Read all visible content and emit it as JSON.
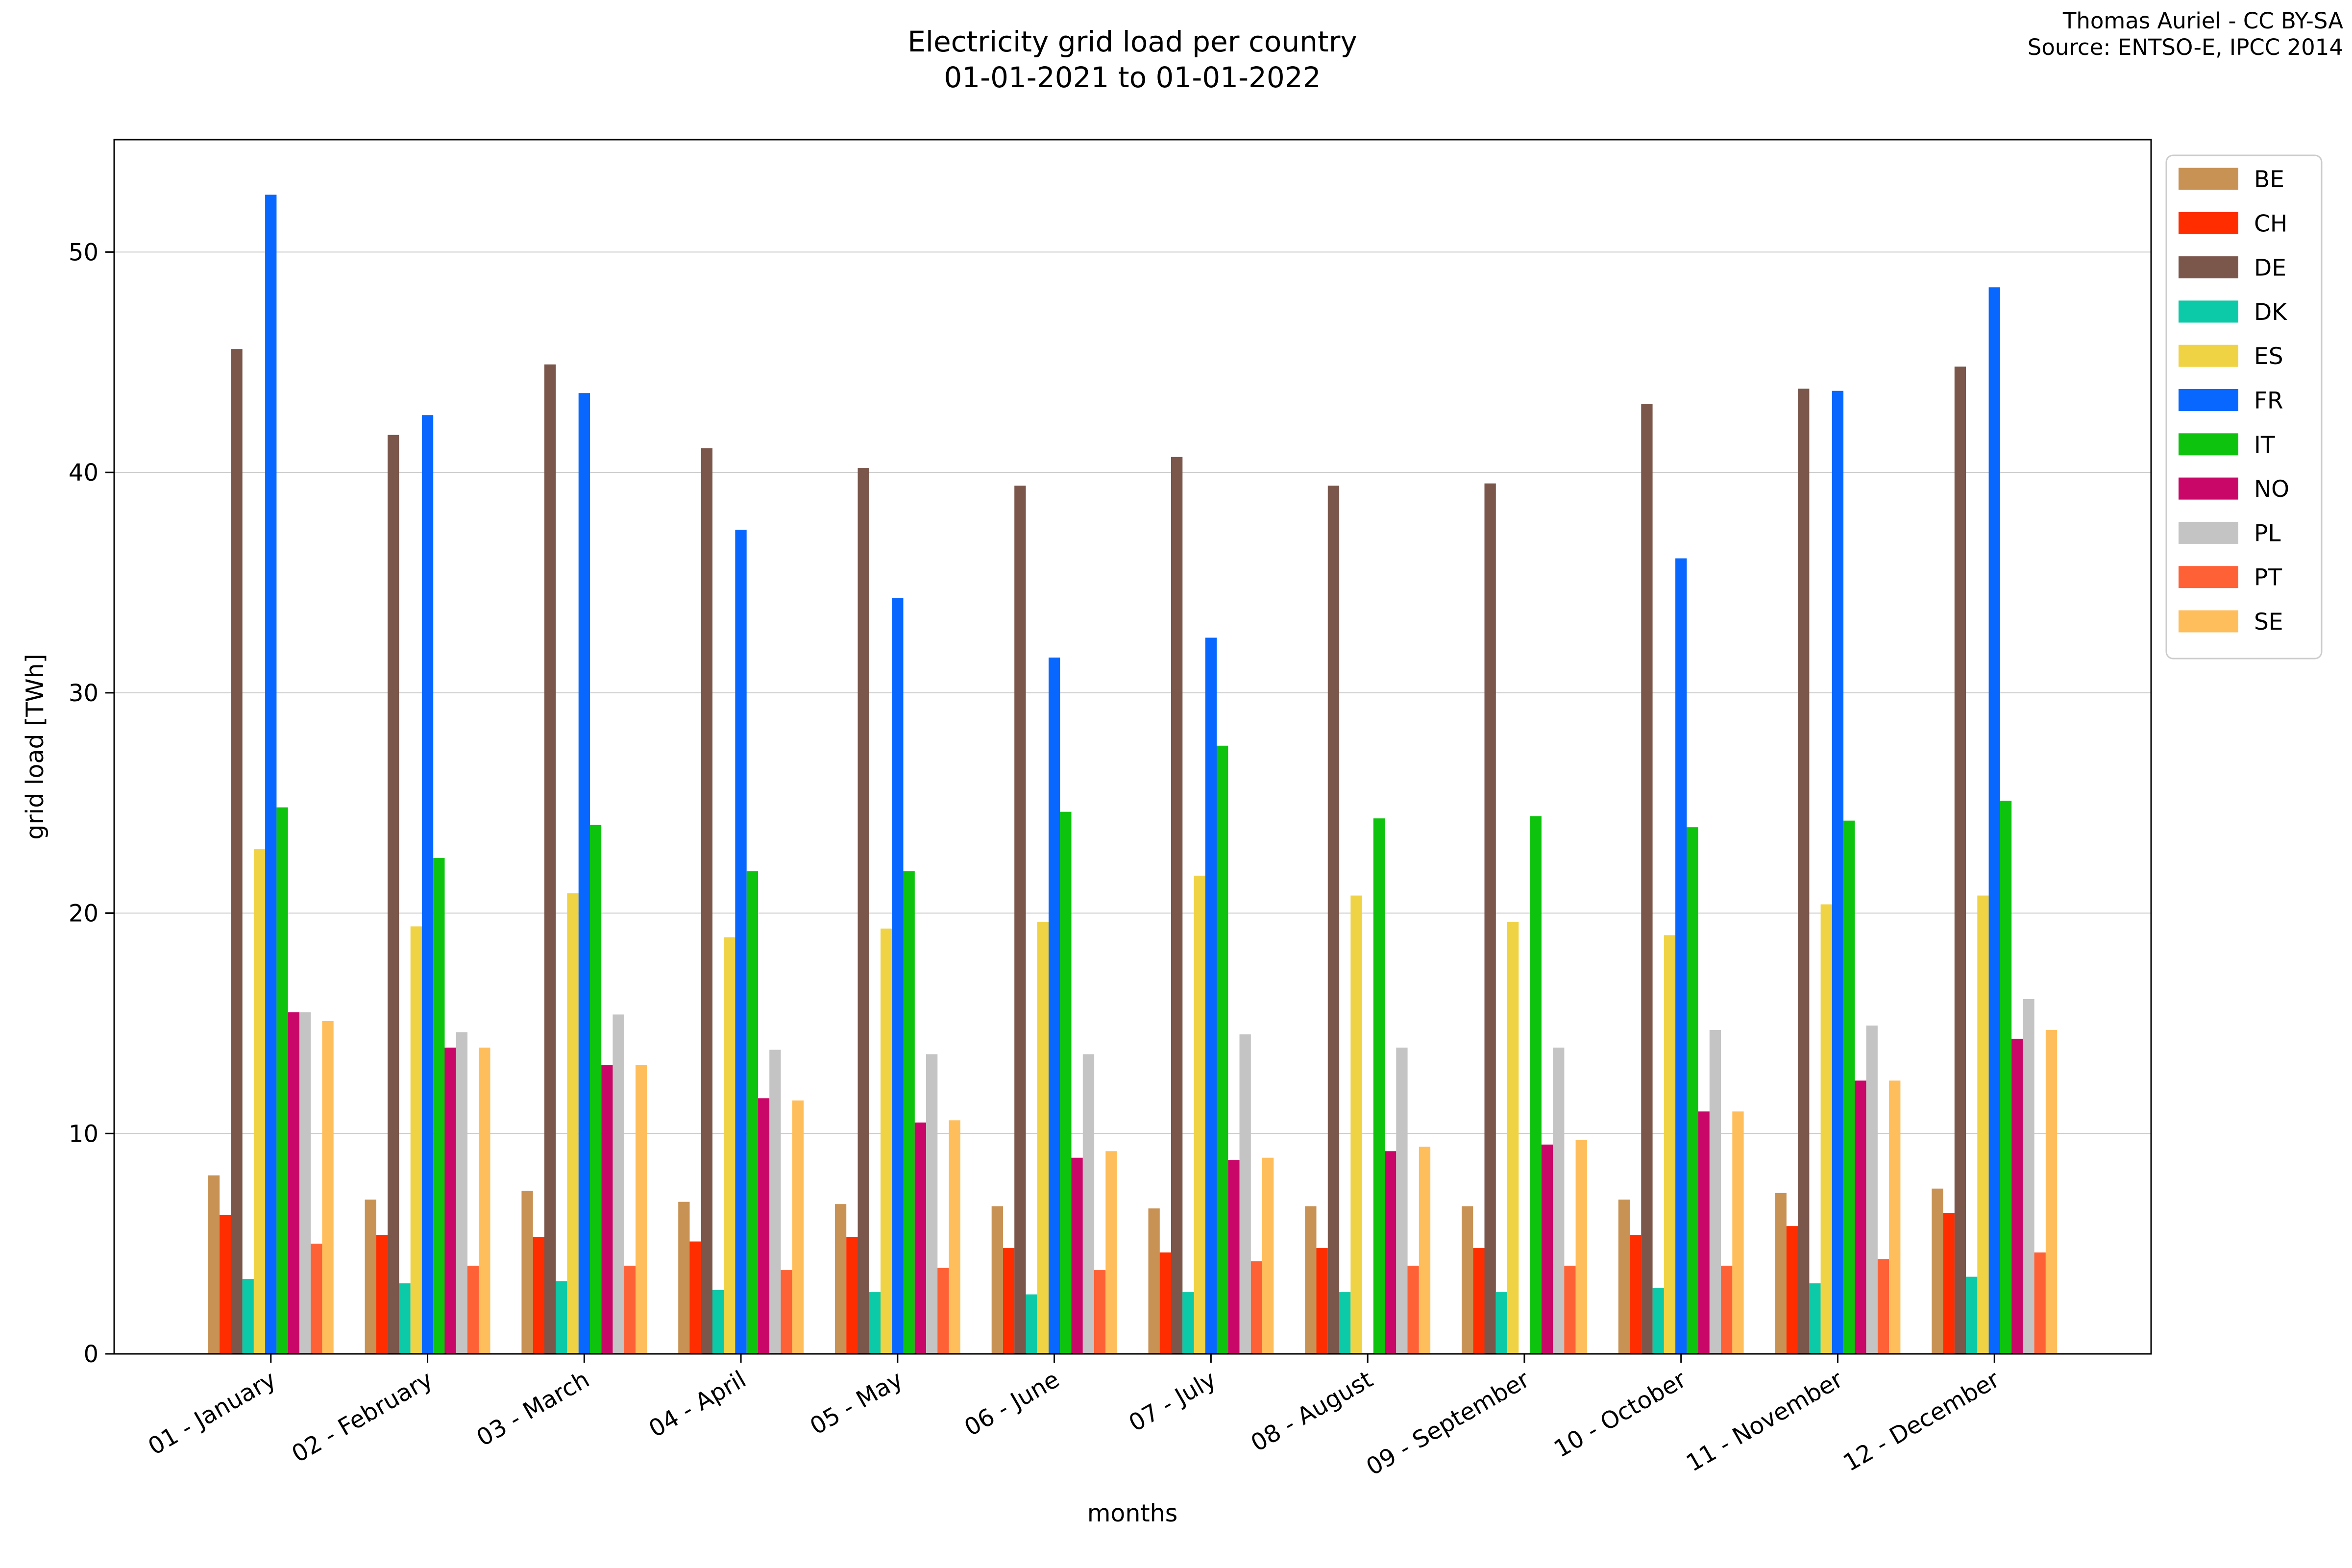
{
  "header": {
    "title_line1": "Electricity grid load per country",
    "title_line2": "01-01-2021 to 01-01-2022",
    "credit_line1": "Thomas Auriel - CC BY-SA",
    "credit_line2": "Source: ENTSO-E, IPCC 2014"
  },
  "chart_data": {
    "type": "bar",
    "title": "Electricity grid load per country 01-01-2021 to 01-01-2022",
    "xlabel": "months",
    "ylabel": "grid load [TWh]",
    "ylim": [
      0,
      55.1
    ],
    "yticks": [
      0,
      10,
      20,
      30,
      40,
      50
    ],
    "grid": "horizontal-gridlines-at-10-20-30-40-50",
    "gridline_color": "#cccccc",
    "frame_color": "#000000",
    "legend_position": "right",
    "x_tick_rotation_deg": 30,
    "categories": [
      "01 - January",
      "02 - February",
      "03 - March",
      "04 - April",
      "05 - May",
      "06 - June",
      "07 - July",
      "08 - August",
      "09 - September",
      "10 - October",
      "11 - November",
      "12 - December"
    ],
    "series": [
      {
        "name": "BE",
        "color": "#C89254",
        "values": [
          8.1,
          7.0,
          7.4,
          6.9,
          6.8,
          6.7,
          6.6,
          6.7,
          6.7,
          7.0,
          7.3,
          7.5
        ]
      },
      {
        "name": "CH",
        "color": "#FF2D00",
        "values": [
          6.3,
          5.4,
          5.3,
          5.1,
          5.3,
          4.8,
          4.6,
          4.8,
          4.8,
          5.4,
          5.8,
          6.4
        ]
      },
      {
        "name": "DE",
        "color": "#7A564B",
        "values": [
          45.6,
          41.7,
          44.9,
          41.1,
          40.2,
          39.4,
          40.7,
          39.4,
          39.5,
          43.1,
          43.8,
          44.8
        ]
      },
      {
        "name": "DK",
        "color": "#0CC9A7",
        "values": [
          3.4,
          3.2,
          3.3,
          2.9,
          2.8,
          2.7,
          2.8,
          2.8,
          2.8,
          3.0,
          3.2,
          3.5
        ]
      },
      {
        "name": "ES",
        "color": "#F0D345",
        "values": [
          22.9,
          19.4,
          20.9,
          18.9,
          19.3,
          19.6,
          21.7,
          20.8,
          19.6,
          19.0,
          20.4,
          20.8
        ]
      },
      {
        "name": "FR",
        "color": "#0767FF",
        "values": [
          52.6,
          42.6,
          43.6,
          37.4,
          34.3,
          31.6,
          32.5,
          0,
          0,
          36.1,
          43.7,
          48.4
        ]
      },
      {
        "name": "IT",
        "color": "#0EC30E",
        "values": [
          24.8,
          22.5,
          24.0,
          21.9,
          21.9,
          24.6,
          27.6,
          24.3,
          24.4,
          23.9,
          24.2,
          25.1
        ]
      },
      {
        "name": "NO",
        "color": "#C90768",
        "values": [
          15.5,
          13.9,
          13.1,
          11.6,
          10.5,
          8.9,
          8.8,
          9.2,
          9.5,
          11.0,
          12.4,
          14.3
        ]
      },
      {
        "name": "PL",
        "color": "#C4C4C4",
        "values": [
          15.5,
          14.6,
          15.4,
          13.8,
          13.6,
          13.6,
          14.5,
          13.9,
          13.9,
          14.7,
          14.9,
          16.1
        ]
      },
      {
        "name": "PT",
        "color": "#FF6137",
        "values": [
          5.0,
          4.0,
          4.0,
          3.8,
          3.9,
          3.8,
          4.2,
          4.0,
          4.0,
          4.0,
          4.3,
          4.6
        ]
      },
      {
        "name": "SE",
        "color": "#FFBE5C",
        "values": [
          15.1,
          13.9,
          13.1,
          11.5,
          10.6,
          9.2,
          8.9,
          9.4,
          9.7,
          11.0,
          12.4,
          14.7
        ]
      }
    ]
  }
}
